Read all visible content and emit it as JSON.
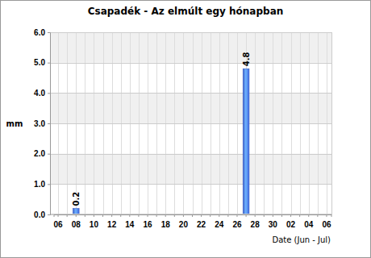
{
  "chart_data": {
    "type": "bar",
    "title": "Csapadék - Az elmúlt egy hónapban",
    "x_label": "Date (Jun - Jul)",
    "y_label": "mm",
    "categories": [
      "06",
      null,
      "08",
      null,
      "10",
      null,
      "12",
      null,
      "14",
      null,
      "16",
      null,
      "18",
      null,
      "20",
      null,
      "22",
      null,
      "24",
      null,
      "26",
      null,
      "28",
      null,
      "30",
      null,
      "02",
      null,
      "04",
      null,
      "06"
    ],
    "values": [
      null,
      null,
      0.2,
      null,
      null,
      null,
      null,
      null,
      null,
      null,
      null,
      null,
      null,
      null,
      null,
      null,
      null,
      null,
      null,
      null,
      null,
      4.8,
      null,
      null,
      null,
      null,
      null,
      null,
      null,
      null,
      null
    ],
    "color": "#3f66e0",
    "ylim": [
      0,
      6
    ],
    "yticks": [
      {
        "value": 0,
        "label": "0.0"
      },
      {
        "value": 1,
        "label": "1.0"
      },
      {
        "value": 2,
        "label": "2.0"
      },
      {
        "value": 3,
        "label": "3.0"
      },
      {
        "value": 4,
        "label": "4.0"
      },
      {
        "value": 5,
        "label": "5.0"
      },
      {
        "value": 6,
        "label": "6.0"
      }
    ],
    "grid": true,
    "data_labels": true
  }
}
